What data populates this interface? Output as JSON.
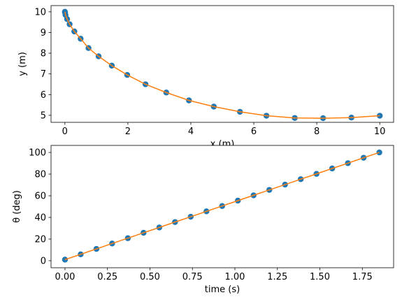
{
  "chart_data": [
    {
      "type": "scatter",
      "xlabel": "x (m)",
      "ylabel": "y (m)",
      "xlim": [
        -0.44,
        10.44
      ],
      "ylim": [
        4.66,
        10.3
      ],
      "xticks": [
        0,
        2,
        4,
        6,
        8,
        10
      ],
      "yticks": [
        5,
        6,
        7,
        8,
        9,
        10
      ],
      "series": [
        {
          "style": "marker",
          "color": "#1f77b4",
          "x": [
            0,
            0.005,
            0.02,
            0.07,
            0.15,
            0.3,
            0.5,
            0.75,
            1.07,
            1.49,
            1.98,
            2.56,
            3.22,
            3.94,
            4.73,
            5.56,
            6.4,
            7.3,
            8.2,
            9.1,
            10
          ],
          "values": [
            10,
            9.97,
            9.85,
            9.65,
            9.4,
            9.05,
            8.7,
            8.25,
            7.85,
            7.4,
            6.95,
            6.5,
            6.1,
            5.72,
            5.42,
            5.17,
            4.98,
            4.87,
            4.86,
            4.89,
            4.98
          ]
        },
        {
          "style": "line",
          "color": "#ff7f0e",
          "x": [
            0,
            0.005,
            0.02,
            0.07,
            0.15,
            0.3,
            0.5,
            0.75,
            1.07,
            1.49,
            1.98,
            2.56,
            3.22,
            3.94,
            4.73,
            5.56,
            6.4,
            7.3,
            8.2,
            9.1,
            10
          ],
          "values": [
            10,
            9.97,
            9.85,
            9.65,
            9.4,
            9.05,
            8.7,
            8.25,
            7.85,
            7.4,
            6.95,
            6.5,
            6.1,
            5.72,
            5.42,
            5.17,
            4.98,
            4.87,
            4.86,
            4.89,
            4.98
          ]
        }
      ]
    },
    {
      "type": "scatter",
      "xlabel": "time (s)",
      "ylabel": "θ (deg)",
      "xlim": [
        -0.082,
        1.934
      ],
      "ylim": [
        -6.5,
        106.5
      ],
      "xticks": [
        {
          "value": 0,
          "label": "0.00"
        },
        {
          "value": 0.25,
          "label": "0.25"
        },
        {
          "value": 0.5,
          "label": "0.50"
        },
        {
          "value": 0.75,
          "label": "0.75"
        },
        {
          "value": 1,
          "label": "1.00"
        },
        {
          "value": 1.25,
          "label": "1.25"
        },
        {
          "value": 1.5,
          "label": "1.50"
        },
        {
          "value": 1.75,
          "label": "1.75"
        }
      ],
      "yticks": [
        0,
        20,
        40,
        60,
        80,
        100
      ],
      "series": [
        {
          "style": "marker",
          "color": "#1f77b4",
          "x": [
            0,
            0.0925,
            0.185,
            0.2775,
            0.37,
            0.4625,
            0.555,
            0.6475,
            0.74,
            0.8325,
            0.925,
            1.0175,
            1.11,
            1.2025,
            1.295,
            1.3875,
            1.48,
            1.5725,
            1.665,
            1.7575,
            1.85
          ],
          "values": [
            1,
            5.9,
            10.9,
            15.9,
            20.8,
            25.8,
            30.7,
            35.7,
            40.6,
            45.6,
            50.5,
            55.5,
            60.4,
            65.4,
            70.3,
            75.3,
            80.2,
            85.2,
            90.1,
            95.1,
            100
          ]
        },
        {
          "style": "line",
          "color": "#ff7f0e",
          "x": [
            0,
            0.0925,
            0.185,
            0.2775,
            0.37,
            0.4625,
            0.555,
            0.6475,
            0.74,
            0.8325,
            0.925,
            1.0175,
            1.11,
            1.2025,
            1.295,
            1.3875,
            1.48,
            1.5725,
            1.665,
            1.7575,
            1.85
          ],
          "values": [
            1,
            5.9,
            10.9,
            15.9,
            20.8,
            25.8,
            30.7,
            35.7,
            40.6,
            45.6,
            50.5,
            55.5,
            60.4,
            65.4,
            70.3,
            75.3,
            80.2,
            85.2,
            90.1,
            95.1,
            100
          ]
        }
      ]
    }
  ]
}
